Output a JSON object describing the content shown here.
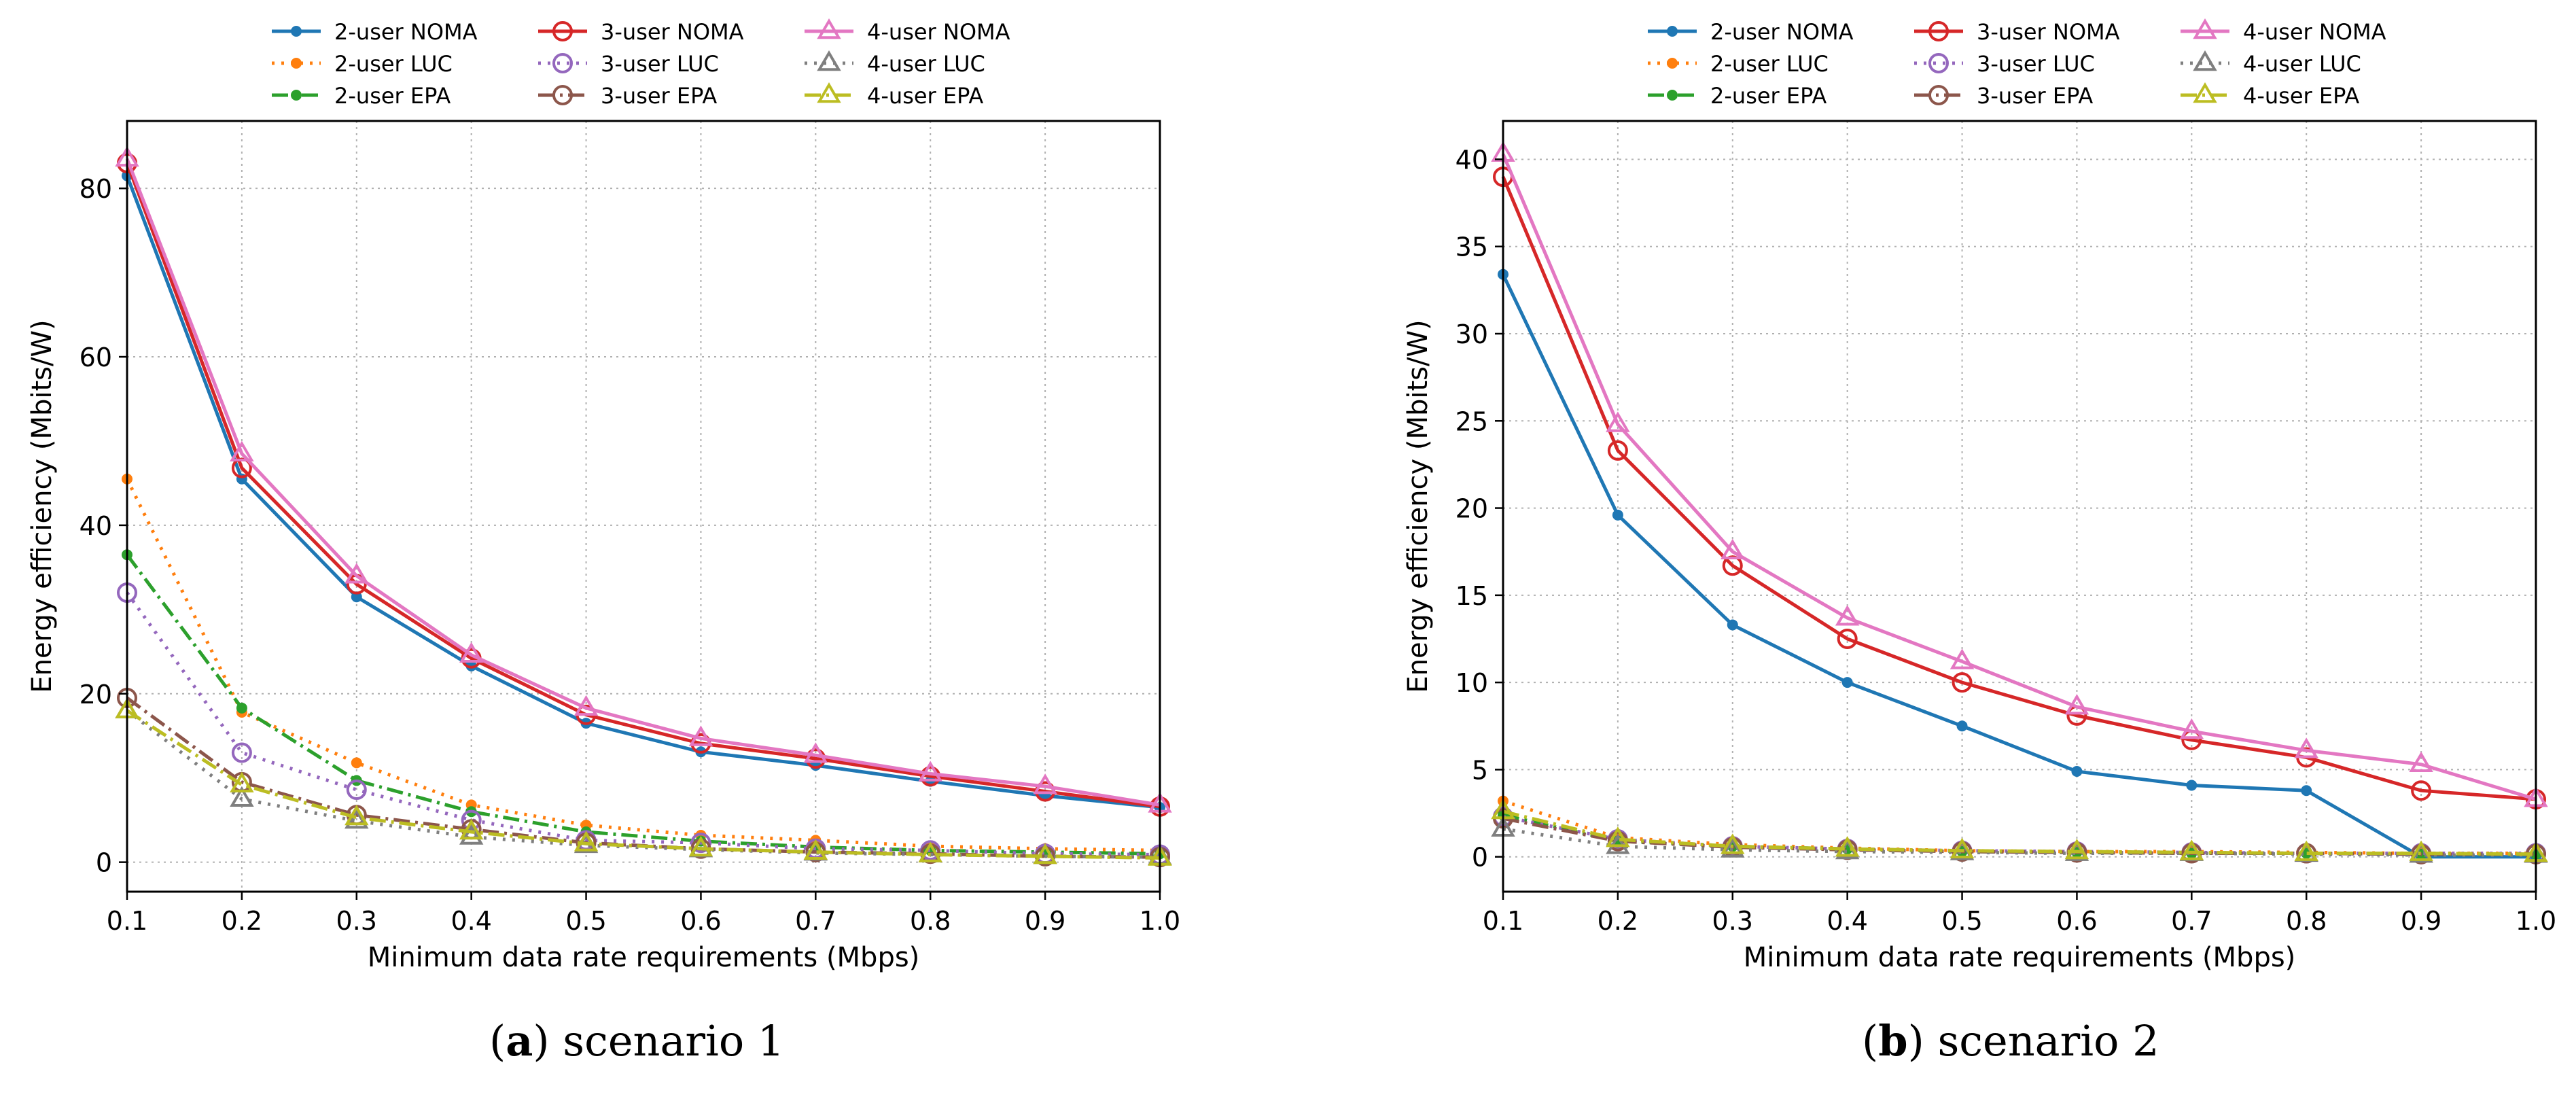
{
  "colors": {
    "2-user": "#1f77b4",
    "2-user LUC": "#ff7f0e",
    "2-user EPA": "#2ca02c",
    "3-user NOMA": "#d62728",
    "3-user LUC": "#9467bd",
    "3-user EPA": "#8c564b",
    "4-user NOMA": "#e377c2",
    "4-user LUC": "#7f7f7f",
    "4-user EPA": "#bcbd22"
  },
  "legend": [
    {
      "name": "2-user NOMA",
      "color": "#1f77b4",
      "dash": "solid",
      "marker": "dot"
    },
    {
      "name": "2-user LUC",
      "color": "#ff7f0e",
      "dash": "dotted",
      "marker": "dot"
    },
    {
      "name": "2-user EPA",
      "color": "#2ca02c",
      "dash": "dashdot",
      "marker": "dot"
    },
    {
      "name": "3-user NOMA",
      "color": "#d62728",
      "dash": "solid",
      "marker": "circle"
    },
    {
      "name": "3-user LUC",
      "color": "#9467bd",
      "dash": "dotted",
      "marker": "circle"
    },
    {
      "name": "3-user EPA",
      "color": "#8c564b",
      "dash": "dashdot",
      "marker": "circle"
    },
    {
      "name": "4-user NOMA",
      "color": "#e377c2",
      "dash": "solid",
      "marker": "triangle"
    },
    {
      "name": "4-user LUC",
      "color": "#7f7f7f",
      "dash": "dotted",
      "marker": "triangle"
    },
    {
      "name": "4-user EPA",
      "color": "#bcbd22",
      "dash": "dashdot",
      "marker": "triangle"
    }
  ],
  "captions": [
    {
      "label": "a",
      "text": "scenario 1"
    },
    {
      "label": "b",
      "text": "scenario 2"
    }
  ],
  "chart_data": [
    {
      "type": "line",
      "title": "scenario 1",
      "xlabel": "Minimum data rate requirements (Mbps)",
      "ylabel": "Energy efficiency (Mbits/W)",
      "xlim": [
        0.1,
        1.0
      ],
      "ylim": [
        -3.5,
        88
      ],
      "grid": true,
      "legend_position": "top",
      "x": [
        0.1,
        0.2,
        0.3,
        0.4,
        0.5,
        0.6,
        0.7,
        0.8,
        0.9,
        1.0
      ],
      "xticks": [
        "0.1",
        "0.2",
        "0.3",
        "0.4",
        "0.5",
        "0.6",
        "0.7",
        "0.8",
        "0.9",
        "1.0"
      ],
      "yticks": [
        0,
        20,
        40,
        60,
        80
      ],
      "series": [
        {
          "name": "2-user NOMA",
          "values": [
            81.5,
            45.5,
            31.5,
            23.3,
            16.5,
            13.1,
            11.5,
            9.6,
            7.9,
            6.5
          ]
        },
        {
          "name": "2-user LUC",
          "values": [
            45.5,
            17.8,
            11.8,
            6.8,
            4.4,
            3.2,
            2.6,
            1.9,
            1.6,
            1.4
          ]
        },
        {
          "name": "2-user EPA",
          "values": [
            36.5,
            18.3,
            9.7,
            6.0,
            3.6,
            2.5,
            1.8,
            1.4,
            1.2,
            1.0
          ]
        },
        {
          "name": "3-user NOMA",
          "values": [
            83.0,
            46.8,
            33.0,
            24.2,
            17.5,
            14.1,
            12.3,
            10.2,
            8.4,
            6.6
          ]
        },
        {
          "name": "3-user LUC",
          "values": [
            32.0,
            13.0,
            8.6,
            5.0,
            2.6,
            2.3,
            1.6,
            1.4,
            1.0,
            0.9
          ]
        },
        {
          "name": "3-user EPA",
          "values": [
            19.5,
            9.5,
            5.6,
            3.9,
            2.3,
            1.6,
            1.2,
            1.0,
            0.7,
            0.6
          ]
        },
        {
          "name": "4-user NOMA",
          "values": [
            83.5,
            48.5,
            34.0,
            24.6,
            18.3,
            14.7,
            12.7,
            10.5,
            9.0,
            6.8
          ]
        },
        {
          "name": "4-user LUC",
          "values": [
            18.0,
            7.5,
            4.9,
            3.0,
            2.0,
            1.5,
            1.1,
            0.9,
            0.7,
            0.6
          ]
        },
        {
          "name": "4-user EPA",
          "values": [
            18.0,
            9.2,
            5.3,
            3.6,
            2.2,
            1.6,
            1.2,
            0.9,
            0.7,
            0.5
          ]
        }
      ]
    },
    {
      "type": "line",
      "title": "scenario 2",
      "xlabel": "Minimum data rate requirements (Mbps)",
      "ylabel": "Energy efficiency (Mbits/W)",
      "xlim": [
        0.1,
        1.0
      ],
      "ylim": [
        -2,
        42.2
      ],
      "grid": true,
      "legend_position": "top",
      "x": [
        0.1,
        0.2,
        0.3,
        0.4,
        0.5,
        0.6,
        0.7,
        0.8,
        0.9,
        1.0
      ],
      "xticks": [
        "0.1",
        "0.2",
        "0.3",
        "0.4",
        "0.5",
        "0.6",
        "0.7",
        "0.8",
        "0.9",
        "1.0"
      ],
      "yticks": [
        0,
        5,
        10,
        15,
        20,
        25,
        30,
        35,
        40
      ],
      "series": [
        {
          "name": "2-user NOMA",
          "values": [
            33.4,
            19.6,
            13.3,
            10.0,
            7.5,
            4.9,
            4.1,
            3.8,
            0.0,
            0.0
          ]
        },
        {
          "name": "2-user LUC",
          "values": [
            3.2,
            1.1,
            0.7,
            0.5,
            0.35,
            0.3,
            0.3,
            0.25,
            0.2,
            0.2
          ]
        },
        {
          "name": "2-user EPA",
          "values": [
            2.4,
            0.9,
            0.6,
            0.45,
            0.3,
            0.25,
            0.2,
            0.2,
            0.15,
            0.15
          ]
        },
        {
          "name": "3-user NOMA",
          "values": [
            39.0,
            23.3,
            16.7,
            12.5,
            10.0,
            8.1,
            6.7,
            5.7,
            3.8,
            3.3
          ]
        },
        {
          "name": "3-user LUC",
          "values": [
            2.3,
            1.0,
            0.6,
            0.45,
            0.35,
            0.3,
            0.25,
            0.2,
            0.2,
            0.2
          ]
        },
        {
          "name": "3-user EPA",
          "values": [
            2.2,
            0.9,
            0.55,
            0.4,
            0.3,
            0.25,
            0.2,
            0.2,
            0.15,
            0.15
          ]
        },
        {
          "name": "4-user NOMA",
          "values": [
            40.3,
            24.8,
            17.5,
            13.7,
            11.2,
            8.6,
            7.2,
            6.1,
            5.3,
            3.3
          ]
        },
        {
          "name": "4-user LUC",
          "values": [
            1.6,
            0.6,
            0.4,
            0.3,
            0.25,
            0.2,
            0.2,
            0.15,
            0.1,
            0.1
          ]
        },
        {
          "name": "4-user EPA",
          "values": [
            2.6,
            1.0,
            0.6,
            0.45,
            0.35,
            0.3,
            0.25,
            0.2,
            0.2,
            0.15
          ]
        }
      ]
    }
  ]
}
